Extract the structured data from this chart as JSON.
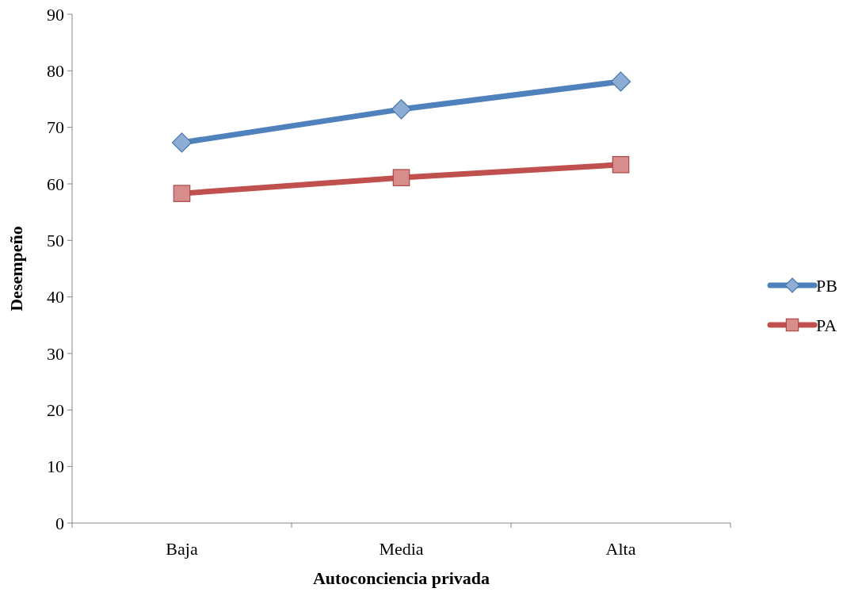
{
  "chart_data": {
    "type": "line",
    "xlabel": "Autoconciencia privada",
    "ylabel": "Desempeño",
    "categories": [
      "Baja",
      "Media",
      "Alta"
    ],
    "series": [
      {
        "name": "PB",
        "color": "#4f81bd",
        "marker": "diamond",
        "values": [
          67.3,
          73.2,
          78.1
        ]
      },
      {
        "name": "PA",
        "color": "#c0504d",
        "marker": "square",
        "values": [
          58.3,
          61.1,
          63.4
        ]
      }
    ],
    "ylim": [
      0,
      90
    ],
    "yticks": [
      0,
      10,
      20,
      30,
      40,
      50,
      60,
      70,
      80,
      90
    ],
    "grid": false,
    "legend": "right",
    "line_style": "solid"
  }
}
